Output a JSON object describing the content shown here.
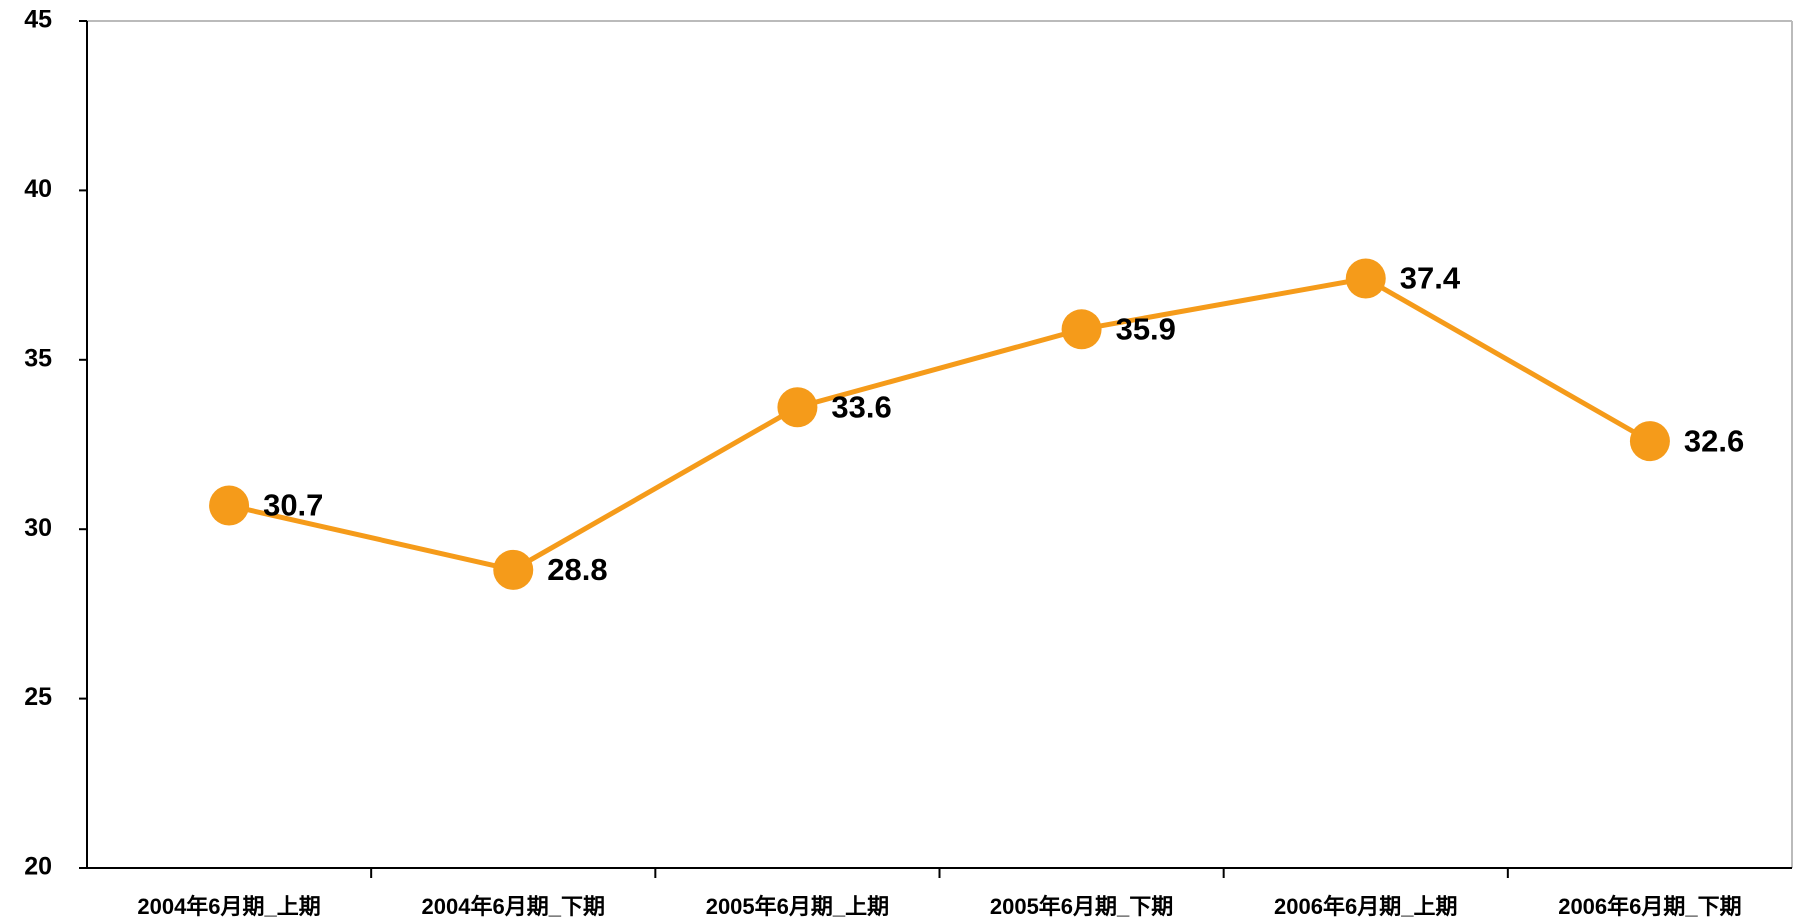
{
  "chart_data": {
    "type": "line",
    "categories": [
      "2004年6月期_上期",
      "2004年6月期_下期",
      "2005年6月期_上期",
      "2005年6月期_下期",
      "2006年6月期_上期",
      "2006年6月期_下期"
    ],
    "series": [
      {
        "color": "#f59b1a",
        "values": [
          30.7,
          28.8,
          33.6,
          35.9,
          37.4,
          32.6
        ]
      }
    ],
    "ylim": [
      20,
      45
    ],
    "yticks": [
      20,
      25,
      30,
      35,
      40,
      45
    ],
    "grid": false
  }
}
